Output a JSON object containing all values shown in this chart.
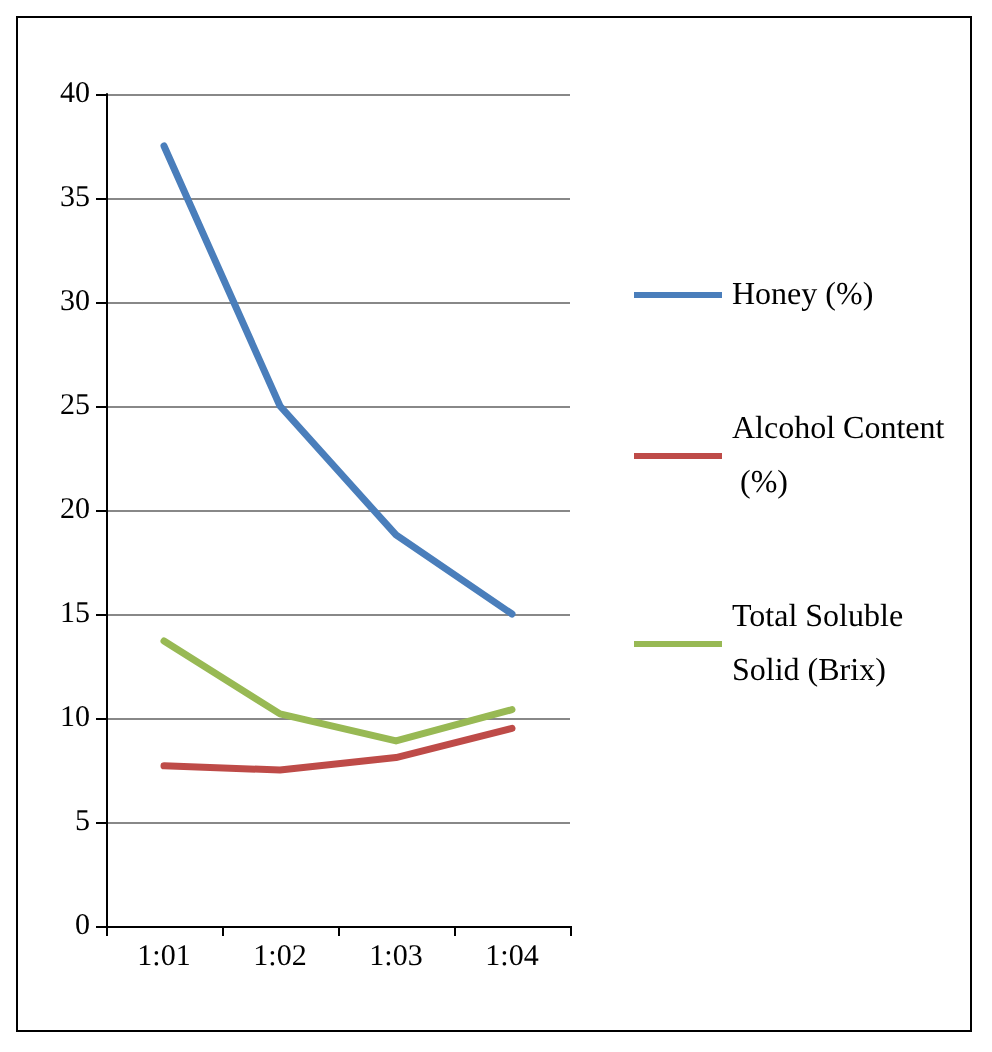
{
  "chart_data": {
    "type": "line",
    "categories": [
      "1:01",
      "1:02",
      "1:03",
      "1:04"
    ],
    "series": [
      {
        "name": "Honey (%)",
        "color": "#4a7ebb",
        "values": [
          37.5,
          25,
          18.8,
          15
        ]
      },
      {
        "name": "Alcohol Content (%)",
        "color": "#be4b48",
        "values": [
          7.7,
          7.5,
          8.1,
          9.5
        ]
      },
      {
        "name": "Total Soluble Solid (Brix)",
        "color": "#98b954",
        "values": [
          13.7,
          10.2,
          8.9,
          10.4
        ]
      }
    ],
    "ylim": [
      0,
      40
    ],
    "yticks": [
      0,
      5,
      10,
      15,
      20,
      25,
      30,
      35,
      40
    ],
    "grid": "y",
    "legend": "right",
    "marker": "none",
    "line_style": "solid"
  }
}
